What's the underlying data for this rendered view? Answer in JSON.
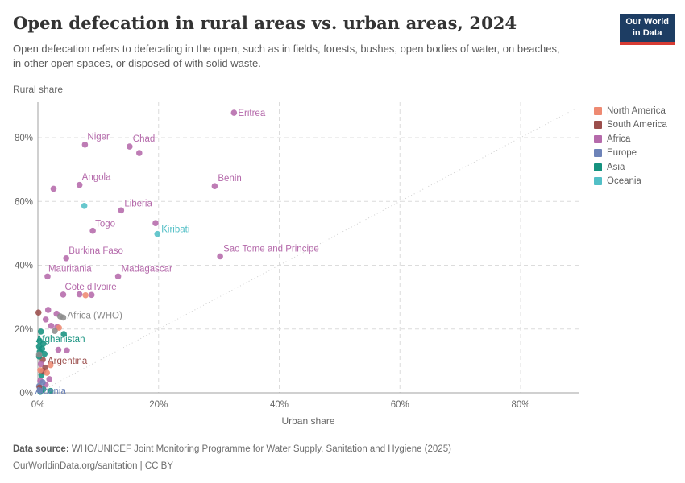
{
  "header": {
    "title": "Open defecation in rural areas vs. urban areas, 2024",
    "subtitle": "Open defecation refers to defecating in the open, such as in fields, forests, bushes, open bodies of water, on beaches, in other open spaces, or disposed of with solid waste.",
    "logo_line1": "Our World",
    "logo_line2": "in Data"
  },
  "footer": {
    "source_label": "Data source:",
    "source_text": " WHO/UNICEF Joint Monitoring Programme for Water Supply, Sanitation and Hygiene (2025)",
    "line2": "OurWorldinData.org/sanitation | CC BY"
  },
  "chart_data": {
    "type": "scatter",
    "title": "Open defecation in rural areas vs. urban areas, 2024",
    "xlabel": "Urban share",
    "ylabel": "Rural share",
    "xlim": [
      0,
      89
    ],
    "ylim": [
      0,
      91
    ],
    "xticks": [
      0,
      20,
      40,
      60,
      80
    ],
    "yticks": [
      0,
      20,
      40,
      60,
      80
    ],
    "tick_suffix": "%",
    "grid": "dashed",
    "parity_line": true,
    "legend_position": "right",
    "legend": [
      "North America",
      "South America",
      "Africa",
      "Europe",
      "Asia",
      "Oceania"
    ],
    "continent_colors": {
      "North America": "#EE8A72",
      "South America": "#9B4E4C",
      "Africa": "#B56AAB",
      "Europe": "#6D83B8",
      "Asia": "#16927F",
      "Oceania": "#52BFC6",
      "Aggregate": "#8b8b8b"
    },
    "axis_color": "#a0a0a0",
    "grid_color": "#dcdcdc",
    "tick_label_color": "#666666",
    "points": [
      {
        "label": "Eritrea",
        "continent": "Africa",
        "urban": 32.5,
        "rural": 87.8,
        "label_offset": [
          5,
          4
        ]
      },
      {
        "label": "Niger",
        "continent": "Africa",
        "urban": 7.8,
        "rural": 77.8,
        "label_offset": [
          3,
          -6
        ]
      },
      {
        "label": "Chad",
        "continent": "Africa",
        "urban": 15.2,
        "rural": 77.2,
        "label_offset": [
          4,
          -6
        ]
      },
      {
        "label": "Angola",
        "continent": "Africa",
        "urban": 6.9,
        "rural": 65.2,
        "label_offset": [
          3,
          -6
        ]
      },
      {
        "label": "Benin",
        "continent": "Africa",
        "urban": 29.3,
        "rural": 64.8,
        "label_offset": [
          4,
          -6
        ]
      },
      {
        "label": "Liberia",
        "continent": "Africa",
        "urban": 13.8,
        "rural": 57.2,
        "label_offset": [
          4,
          -5
        ]
      },
      {
        "label": "Togo",
        "continent": "Africa",
        "urban": 9.1,
        "rural": 50.8,
        "label_offset": [
          3,
          -5
        ]
      },
      {
        "label": "Sao Tome and Principe",
        "continent": "Africa",
        "urban": 30.2,
        "rural": 42.8,
        "label_offset": [
          4,
          -6
        ]
      },
      {
        "label": "Burkina Faso",
        "continent": "Africa",
        "urban": 4.7,
        "rural": 42.2,
        "label_offset": [
          3,
          -6
        ]
      },
      {
        "label": "Mauritania",
        "continent": "Africa",
        "urban": 1.6,
        "rural": 36.5,
        "label_offset": [
          1,
          -6
        ]
      },
      {
        "label": "Madagascar",
        "continent": "Africa",
        "urban": 13.3,
        "rural": 36.5,
        "label_offset": [
          4,
          -6
        ]
      },
      {
        "label": "Cote d'Ivoire",
        "continent": "Africa",
        "urban": 4.2,
        "rural": 30.8,
        "label_offset": [
          2,
          -6
        ]
      },
      {
        "label": "Kiribati",
        "continent": "Oceania",
        "urban": 19.8,
        "rural": 49.8,
        "label_offset": [
          5,
          -2
        ]
      },
      {
        "label": "Afghanistan",
        "continent": "Asia",
        "urban": 0.5,
        "rural": 19.2,
        "label_offset": [
          -6,
          13
        ]
      },
      {
        "label": "Argentina",
        "continent": "South America",
        "urban": 0.8,
        "rural": 10.4,
        "label_offset": [
          6,
          5
        ]
      },
      {
        "label": "Albania",
        "continent": "Europe",
        "urban": 0.2,
        "rural": 2.1,
        "label_offset": [
          -5,
          10
        ]
      },
      {
        "label": "Africa (WHO)",
        "continent": "Aggregate",
        "urban": 4.2,
        "rural": 23.6,
        "label_offset": [
          5,
          1
        ]
      },
      {
        "continent": "Africa",
        "urban": 16.8,
        "rural": 75.2
      },
      {
        "continent": "Africa",
        "urban": 2.6,
        "rural": 64.0
      },
      {
        "continent": "Africa",
        "urban": 19.5,
        "rural": 53.2
      },
      {
        "continent": "Africa",
        "urban": 6.9,
        "rural": 30.9
      },
      {
        "continent": "Africa",
        "urban": 8.9,
        "rural": 30.7
      },
      {
        "continent": "Africa",
        "urban": 1.7,
        "rural": 26.0
      },
      {
        "continent": "Africa",
        "urban": 3.1,
        "rural": 24.8
      },
      {
        "continent": "Africa",
        "urban": 1.3,
        "rural": 23.0
      },
      {
        "continent": "Africa",
        "urban": 2.2,
        "rural": 21.0
      },
      {
        "continent": "Africa",
        "urban": 3.2,
        "rural": 20.6
      },
      {
        "continent": "Africa",
        "urban": 3.4,
        "rural": 13.5
      },
      {
        "continent": "Africa",
        "urban": 4.8,
        "rural": 13.3
      },
      {
        "continent": "Africa",
        "urban": 0.5,
        "rural": 9.0
      },
      {
        "continent": "Africa",
        "urban": 1.9,
        "rural": 4.3
      },
      {
        "continent": "Africa",
        "urban": 0.4,
        "rural": 3.8
      },
      {
        "continent": "Africa",
        "urban": 1.3,
        "rural": 2.6
      },
      {
        "continent": "Africa",
        "urban": 0.7,
        "rural": 6.6
      },
      {
        "continent": "Oceania",
        "urban": 7.7,
        "rural": 58.6
      },
      {
        "continent": "Asia",
        "urban": 0.3,
        "rural": 16.3
      },
      {
        "continent": "Asia",
        "urban": 0.9,
        "rural": 15.4
      },
      {
        "continent": "Asia",
        "urban": 0.2,
        "rural": 14.6
      },
      {
        "continent": "Asia",
        "urban": 0.7,
        "rural": 13.8
      },
      {
        "continent": "Asia",
        "urban": 0.3,
        "rural": 12.9
      },
      {
        "continent": "Asia",
        "urban": 1.1,
        "rural": 12.2
      },
      {
        "continent": "Asia",
        "urban": 0.2,
        "rural": 11.4
      },
      {
        "continent": "Asia",
        "urban": 4.3,
        "rural": 18.4
      },
      {
        "continent": "Asia",
        "urban": 0.6,
        "rural": 5.6
      },
      {
        "continent": "Asia",
        "urban": 0.9,
        "rural": 1.1
      },
      {
        "continent": "Asia",
        "urban": 2.1,
        "rural": 0.6
      },
      {
        "continent": "Asia",
        "urban": 0.4,
        "rural": 0.3
      },
      {
        "continent": "South America",
        "urban": 0.1,
        "rural": 25.2
      },
      {
        "continent": "South America",
        "urban": 1.2,
        "rural": 7.9
      },
      {
        "continent": "South America",
        "urban": 0.3,
        "rural": 1.7
      },
      {
        "continent": "South America",
        "urban": 0.9,
        "rural": 6.9
      },
      {
        "continent": "North America",
        "urban": 7.9,
        "rural": 30.6
      },
      {
        "continent": "North America",
        "urban": 3.5,
        "rural": 20.4
      },
      {
        "continent": "North America",
        "urban": 2.1,
        "rural": 8.7
      },
      {
        "continent": "North America",
        "urban": 0.4,
        "rural": 7.1
      },
      {
        "continent": "North America",
        "urban": 1.5,
        "rural": 6.3
      },
      {
        "continent": "Europe",
        "urban": 0.8,
        "rural": 3.3
      },
      {
        "continent": "Europe",
        "urban": 0.3,
        "rural": 0.7
      },
      {
        "continent": "Aggregate",
        "urban": 3.7,
        "rural": 24.0
      },
      {
        "continent": "Aggregate",
        "urban": 2.8,
        "rural": 19.4
      },
      {
        "continent": "Aggregate",
        "urban": 0.2,
        "rural": 12.0
      }
    ]
  }
}
